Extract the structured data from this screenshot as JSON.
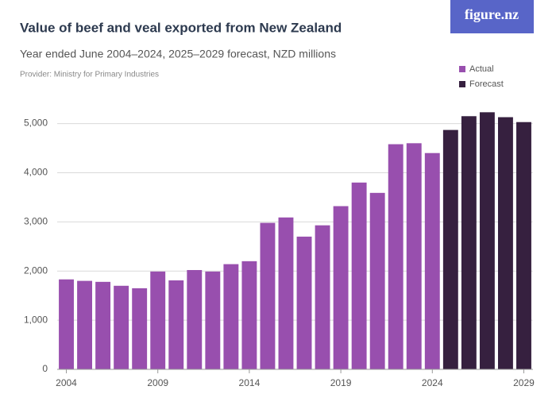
{
  "chart_data": {
    "type": "bar",
    "title": "Value of beef and veal exported from New Zealand",
    "subtitle": "Year ended June 2004–2024, 2025–2029 forecast, NZD millions",
    "provider": "Provider: Ministry for Primary Industries",
    "logo": "figure.nz",
    "x": [
      2004,
      2005,
      2006,
      2007,
      2008,
      2009,
      2010,
      2011,
      2012,
      2013,
      2014,
      2015,
      2016,
      2017,
      2018,
      2019,
      2020,
      2021,
      2022,
      2023,
      2024,
      2025,
      2026,
      2027,
      2028,
      2029
    ],
    "series": [
      {
        "name": "Actual",
        "color": "#984fae",
        "values": [
          1830,
          1800,
          1780,
          1700,
          1650,
          1990,
          1810,
          2020,
          1990,
          2140,
          2200,
          2980,
          3090,
          2700,
          2930,
          3320,
          3800,
          3590,
          4580,
          4600,
          4400,
          null,
          null,
          null,
          null,
          null
        ]
      },
      {
        "name": "Forecast",
        "color": "#36203f",
        "values": [
          null,
          null,
          null,
          null,
          null,
          null,
          null,
          null,
          null,
          null,
          null,
          null,
          null,
          null,
          null,
          null,
          null,
          null,
          null,
          null,
          null,
          4870,
          5150,
          5230,
          5130,
          5030
        ]
      }
    ],
    "xlim": [
      2003.5,
      2029.5
    ],
    "xticks": [
      2004,
      2009,
      2014,
      2019,
      2024,
      2029
    ],
    "ylim": [
      0,
      5300
    ],
    "yticks": [
      0,
      {
        "value": 1000,
        "label": "1,000"
      },
      {
        "value": 2000,
        "label": "2,000"
      },
      {
        "value": 3000,
        "label": "3,000"
      },
      {
        "value": 4000,
        "label": "4,000"
      },
      {
        "value": 5000,
        "label": "5,000"
      }
    ],
    "grid": true,
    "legend": "top-right"
  }
}
